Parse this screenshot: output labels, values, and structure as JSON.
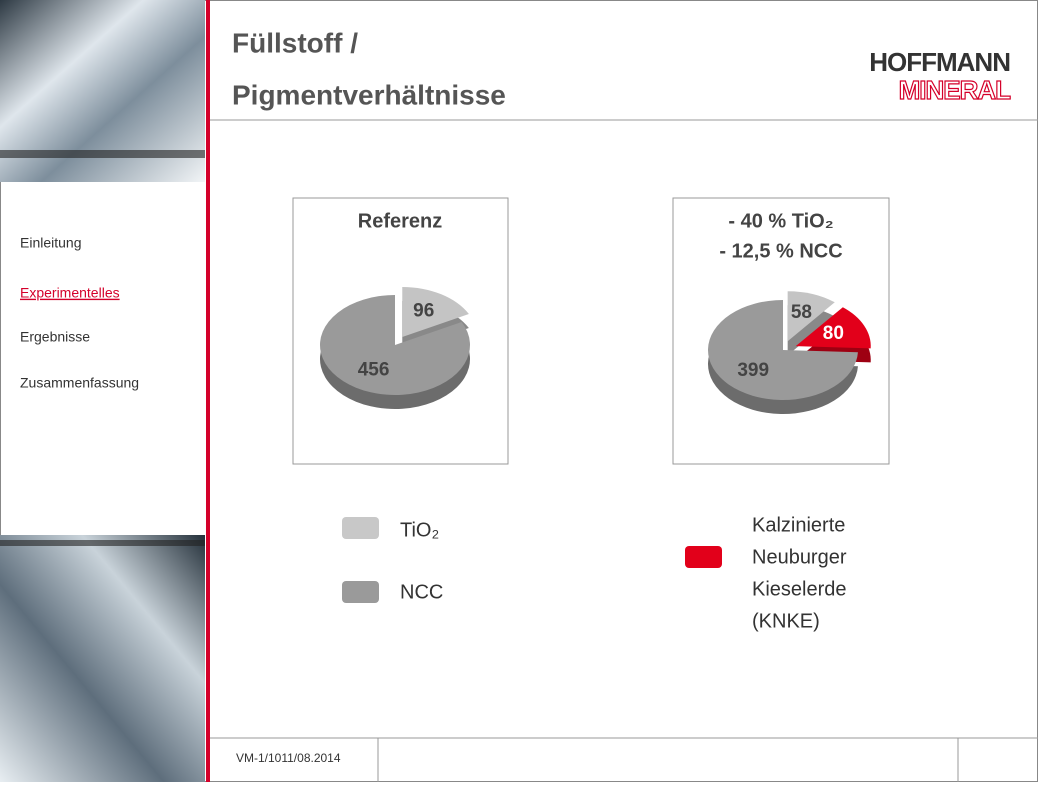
{
  "header": {
    "title_lines": [
      "Füllstoff /",
      "Pigmentverhältnisse"
    ],
    "logo_top": "HOFFMANN",
    "logo_bottom": "MINERAL"
  },
  "nav": {
    "items": [
      "Einleitung",
      "Experimentelles",
      "Ergebnisse",
      "Zusammenfassung"
    ],
    "active": 1
  },
  "footer": {
    "code": "VM-1/1011/08.2014"
  },
  "chart_data": [
    {
      "type": "pie",
      "title_lines": [
        "Referenz"
      ],
      "values": [
        96,
        456
      ],
      "colors": [
        "#c4c4c4",
        "#9a9a9a"
      ],
      "exploded": [
        true,
        false
      ],
      "label_colors": [
        "#444444",
        "#444444"
      ]
    },
    {
      "type": "pie",
      "title_lines": [
        "- 40 % TiO₂",
        "- 12,5 % NCC"
      ],
      "values": [
        58,
        80,
        399
      ],
      "colors": [
        "#c4c4c4",
        "#e2001a",
        "#9a9a9a"
      ],
      "exploded": [
        true,
        true,
        false
      ],
      "label_colors": [
        "#444444",
        "#ffffff",
        "#444444"
      ]
    }
  ],
  "legend": [
    {
      "lines": [
        "TiO₂"
      ],
      "color": "#c8c8c8"
    },
    {
      "lines": [
        "NCC"
      ],
      "color": "#9a9a9a"
    },
    {
      "lines": [
        "Kalzinierte",
        "Neuburger",
        "Kieselerde",
        "(KNKE)"
      ],
      "color": "#e2001a"
    }
  ]
}
